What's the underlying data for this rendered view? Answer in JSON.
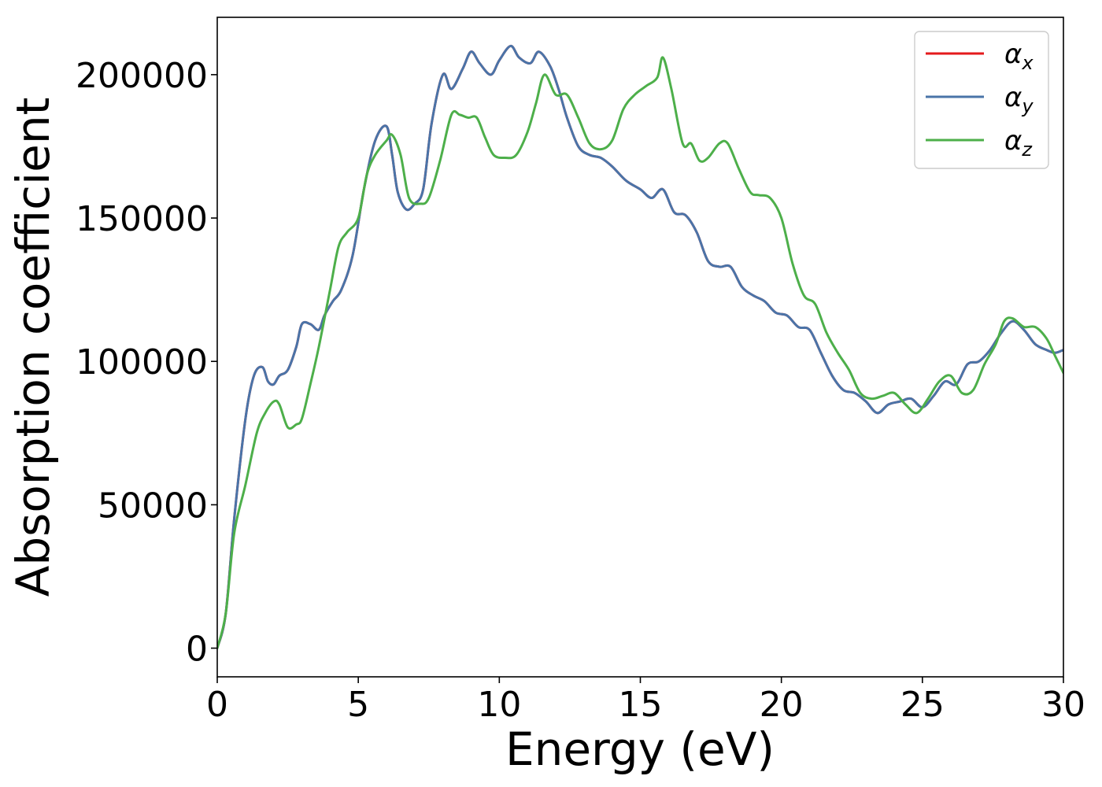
{
  "chart_data": {
    "type": "line",
    "title": "",
    "xlabel": "Energy (eV)",
    "ylabel": "Absorption coefficient",
    "xlim": [
      0,
      30
    ],
    "ylim": [
      -10000,
      220000
    ],
    "xticks": [
      0,
      5,
      10,
      15,
      20,
      25,
      30
    ],
    "yticks": [
      0,
      50000,
      100000,
      150000,
      200000
    ],
    "grid": false,
    "legend_position": "top-right",
    "series": [
      {
        "name": "α_x",
        "symbol": "α",
        "subscript": "x",
        "color": "#e41a1c",
        "x": [
          0,
          0.3,
          0.6,
          1.0,
          1.3,
          1.6,
          1.8,
          2.0,
          2.2,
          2.5,
          2.8,
          3.0,
          3.3,
          3.6,
          3.8,
          4.1,
          4.4,
          4.8,
          5.2,
          5.6,
          6.0,
          6.2,
          6.4,
          6.7,
          7.0,
          7.3,
          7.6,
          8.0,
          8.3,
          8.7,
          9.0,
          9.3,
          9.7,
          10.0,
          10.4,
          10.7,
          11.1,
          11.4,
          11.8,
          12.1,
          12.4,
          12.8,
          13.2,
          13.6,
          14.0,
          14.5,
          15.0,
          15.4,
          15.8,
          16.2,
          16.6,
          17.0,
          17.4,
          17.8,
          18.2,
          18.6,
          19.0,
          19.4,
          19.8,
          20.2,
          20.6,
          21.0,
          21.4,
          21.8,
          22.2,
          22.6,
          23.0,
          23.4,
          23.8,
          24.2,
          24.6,
          25.0,
          25.4,
          25.8,
          26.2,
          26.6,
          27.0,
          27.4,
          27.8,
          28.2,
          28.6,
          29.0,
          29.4,
          29.7,
          30.0
        ],
        "values": [
          0,
          12000,
          45000,
          80000,
          95000,
          98000,
          93000,
          92000,
          95000,
          97000,
          105000,
          113000,
          113000,
          111000,
          116000,
          121000,
          125000,
          137000,
          160000,
          177000,
          182000,
          172000,
          159000,
          153000,
          155000,
          160000,
          183000,
          200000,
          195000,
          202000,
          208000,
          204000,
          200000,
          205000,
          210000,
          206000,
          204000,
          208000,
          203000,
          195000,
          185000,
          175000,
          172000,
          171000,
          168000,
          163000,
          160000,
          157000,
          160000,
          152000,
          151000,
          145000,
          135000,
          133000,
          133000,
          126000,
          123000,
          121000,
          117000,
          116000,
          112000,
          111000,
          103000,
          95000,
          90000,
          89000,
          86000,
          82000,
          85000,
          86000,
          87000,
          84000,
          88000,
          93000,
          92000,
          99000,
          100000,
          104000,
          110000,
          114000,
          111000,
          106000,
          104000,
          103000,
          104000
        ]
      },
      {
        "name": "α_y",
        "symbol": "α",
        "subscript": "y",
        "color": "#4a74a8",
        "x": [
          0,
          0.3,
          0.6,
          1.0,
          1.3,
          1.6,
          1.8,
          2.0,
          2.2,
          2.5,
          2.8,
          3.0,
          3.3,
          3.6,
          3.8,
          4.1,
          4.4,
          4.8,
          5.2,
          5.6,
          6.0,
          6.2,
          6.4,
          6.7,
          7.0,
          7.3,
          7.6,
          8.0,
          8.3,
          8.7,
          9.0,
          9.3,
          9.7,
          10.0,
          10.4,
          10.7,
          11.1,
          11.4,
          11.8,
          12.1,
          12.4,
          12.8,
          13.2,
          13.6,
          14.0,
          14.5,
          15.0,
          15.4,
          15.8,
          16.2,
          16.6,
          17.0,
          17.4,
          17.8,
          18.2,
          18.6,
          19.0,
          19.4,
          19.8,
          20.2,
          20.6,
          21.0,
          21.4,
          21.8,
          22.2,
          22.6,
          23.0,
          23.4,
          23.8,
          24.2,
          24.6,
          25.0,
          25.4,
          25.8,
          26.2,
          26.6,
          27.0,
          27.4,
          27.8,
          28.2,
          28.6,
          29.0,
          29.4,
          29.7,
          30.0
        ],
        "values": [
          0,
          12000,
          45000,
          80000,
          95000,
          98000,
          93000,
          92000,
          95000,
          97000,
          105000,
          113000,
          113000,
          111000,
          116000,
          121000,
          125000,
          137000,
          160000,
          177000,
          182000,
          172000,
          159000,
          153000,
          155000,
          160000,
          183000,
          200000,
          195000,
          202000,
          208000,
          204000,
          200000,
          205000,
          210000,
          206000,
          204000,
          208000,
          203000,
          195000,
          185000,
          175000,
          172000,
          171000,
          168000,
          163000,
          160000,
          157000,
          160000,
          152000,
          151000,
          145000,
          135000,
          133000,
          133000,
          126000,
          123000,
          121000,
          117000,
          116000,
          112000,
          111000,
          103000,
          95000,
          90000,
          89000,
          86000,
          82000,
          85000,
          86000,
          87000,
          84000,
          88000,
          93000,
          92000,
          99000,
          100000,
          104000,
          110000,
          114000,
          111000,
          106000,
          104000,
          103000,
          104000
        ]
      },
      {
        "name": "α_z",
        "symbol": "α",
        "subscript": "z",
        "color": "#4daf4a",
        "x": [
          0,
          0.3,
          0.6,
          1.0,
          1.4,
          1.7,
          2.0,
          2.2,
          2.5,
          2.8,
          3.0,
          3.3,
          3.6,
          4.0,
          4.3,
          4.6,
          5.0,
          5.3,
          5.6,
          6.0,
          6.2,
          6.5,
          6.8,
          7.2,
          7.5,
          7.9,
          8.3,
          8.6,
          8.9,
          9.2,
          9.5,
          9.8,
          10.2,
          10.6,
          11.0,
          11.3,
          11.6,
          12.0,
          12.4,
          12.8,
          13.2,
          13.6,
          14.0,
          14.4,
          14.8,
          15.2,
          15.6,
          15.8,
          16.1,
          16.5,
          16.8,
          17.1,
          17.4,
          17.8,
          18.1,
          18.5,
          18.9,
          19.2,
          19.6,
          20.0,
          20.4,
          20.8,
          21.2,
          21.6,
          22.0,
          22.4,
          22.8,
          23.2,
          23.6,
          24.0,
          24.4,
          24.8,
          25.2,
          25.6,
          26.0,
          26.4,
          26.8,
          27.2,
          27.6,
          27.9,
          28.2,
          28.6,
          29.0,
          29.4,
          29.7,
          30.0
        ],
        "values": [
          0,
          12000,
          40000,
          57000,
          75000,
          82000,
          86000,
          85000,
          77000,
          78000,
          80000,
          92000,
          105000,
          125000,
          140000,
          145000,
          150000,
          165000,
          172000,
          177000,
          179000,
          172000,
          157000,
          155000,
          157000,
          170000,
          186000,
          186000,
          185000,
          185000,
          178000,
          172000,
          171000,
          172000,
          180000,
          190000,
          200000,
          193000,
          193000,
          185000,
          176000,
          174000,
          177000,
          188000,
          193000,
          196000,
          199000,
          206000,
          195000,
          176000,
          176000,
          170000,
          171000,
          176000,
          176000,
          167000,
          159000,
          158000,
          157000,
          150000,
          134000,
          123000,
          120000,
          110000,
          103000,
          97000,
          89000,
          87000,
          88000,
          89000,
          85000,
          82000,
          87000,
          93000,
          95000,
          89000,
          90000,
          99000,
          106000,
          114000,
          115000,
          112000,
          112000,
          108000,
          102000,
          96000
        ]
      }
    ]
  }
}
